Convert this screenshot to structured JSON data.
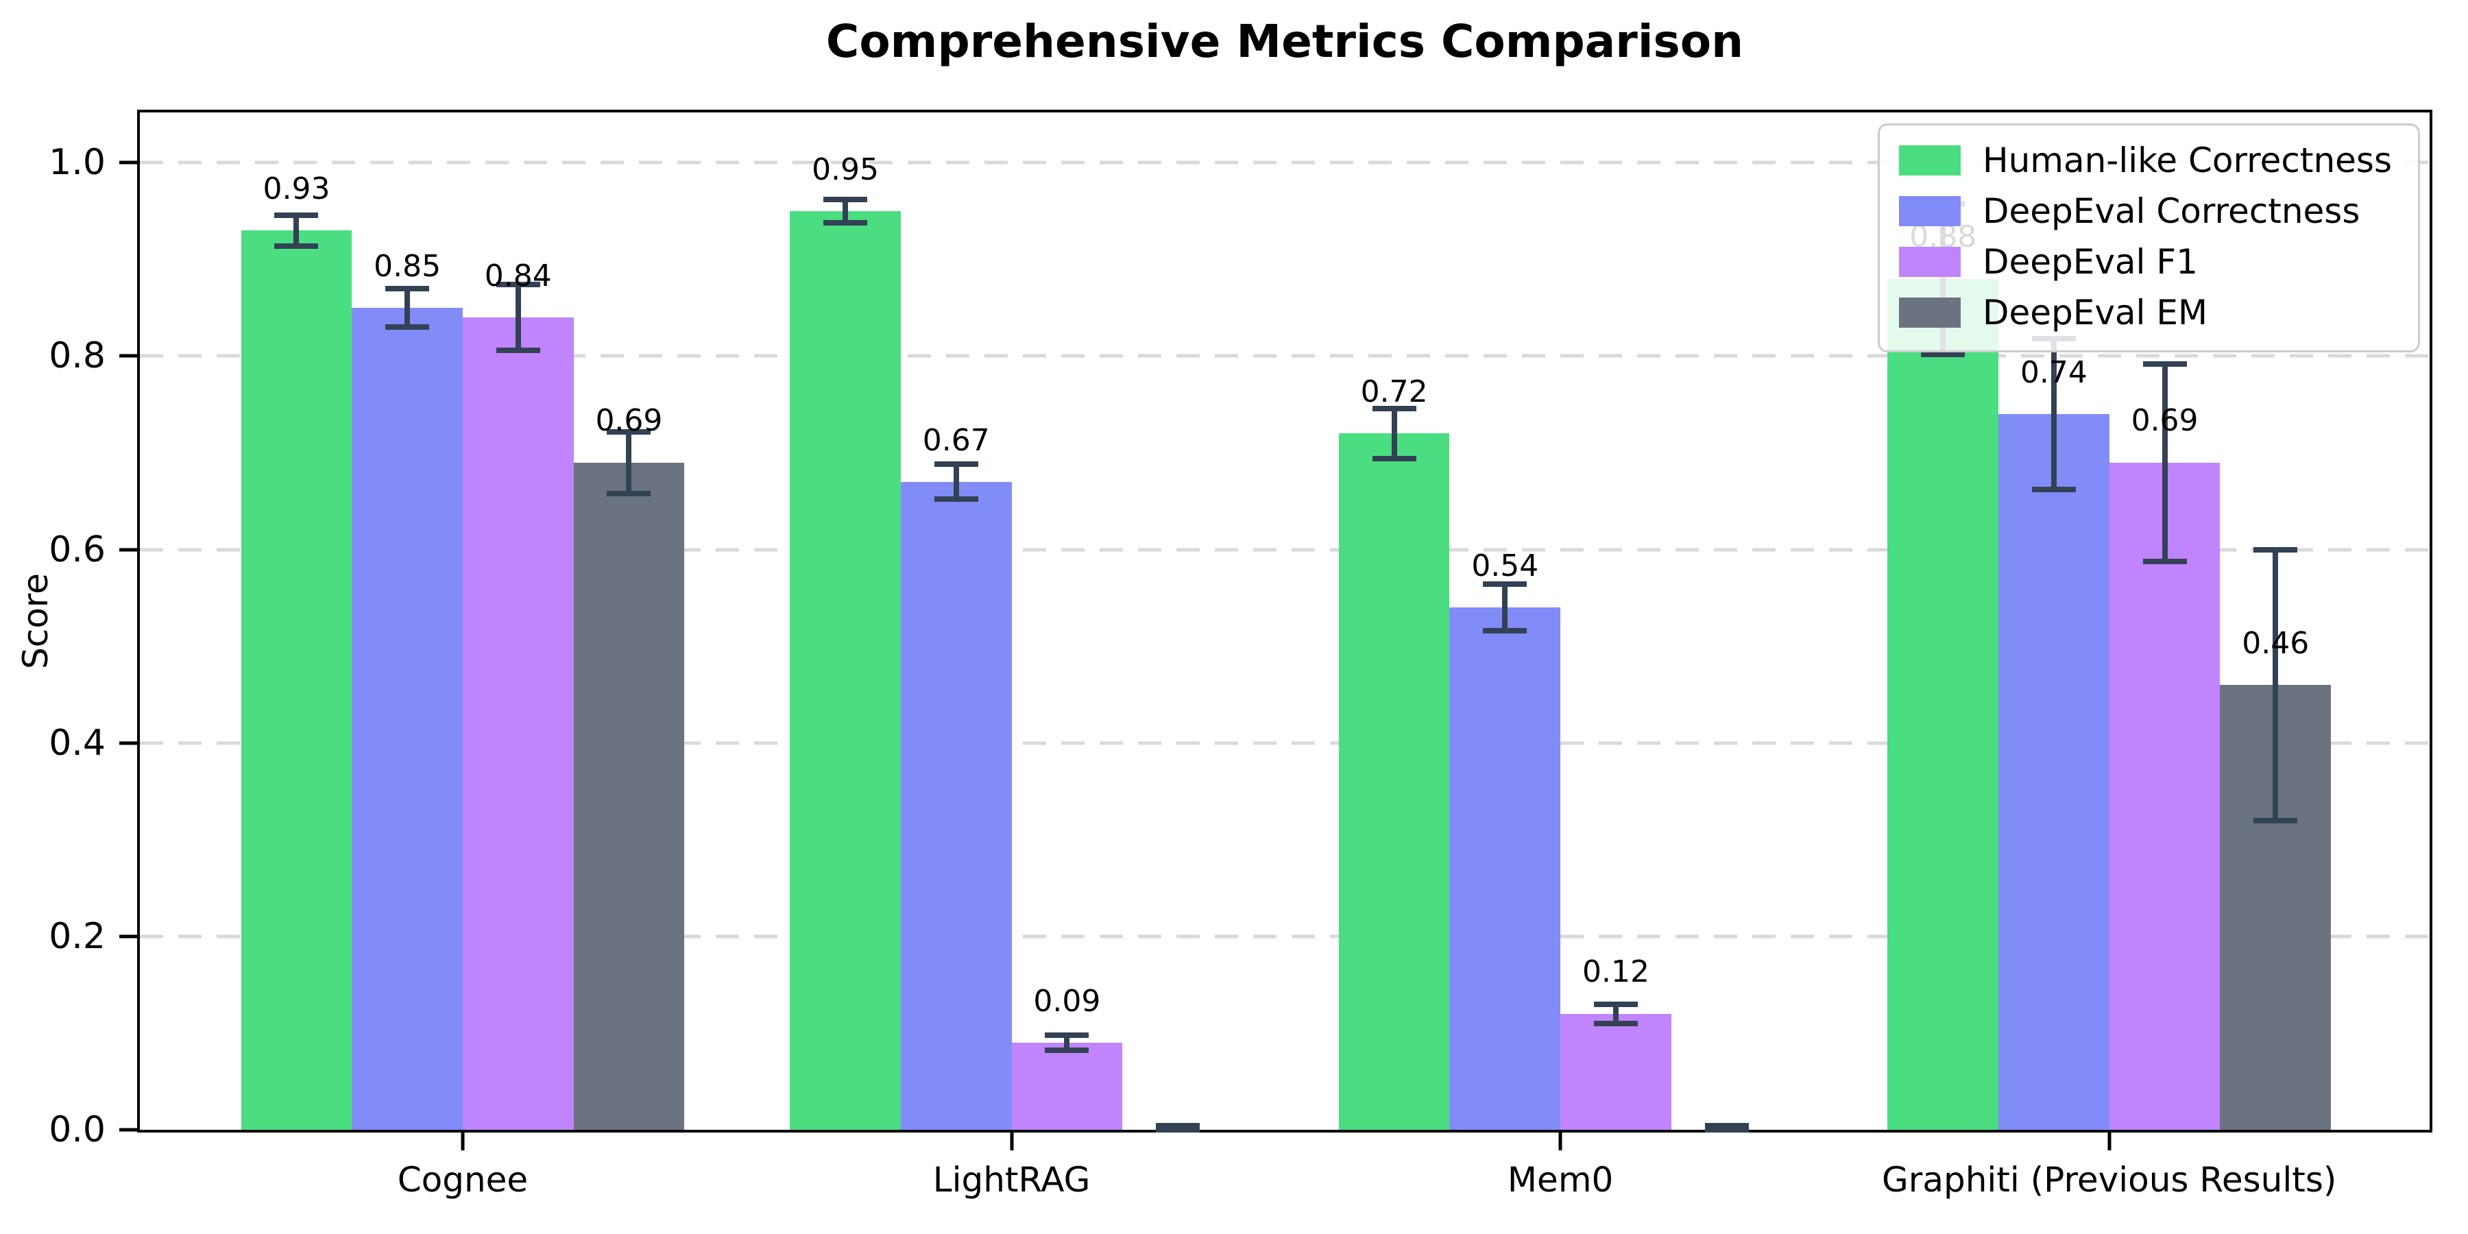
{
  "chart_data": {
    "type": "bar",
    "title": "Comprehensive Metrics Comparison",
    "xlabel": "",
    "ylabel": "Score",
    "categories": [
      "Cognee",
      "LightRAG",
      "Mem0",
      "Graphiti (Previous Results)"
    ],
    "series": [
      {
        "name": "Human-like Correctness",
        "color": "#4ade80",
        "values": [
          0.93,
          0.95,
          0.72,
          0.88
        ],
        "errors": [
          0.016,
          0.012,
          0.026,
          0.078
        ]
      },
      {
        "name": "DeepEval Correctness",
        "color": "#818cf8",
        "values": [
          0.85,
          0.67,
          0.54,
          0.74
        ],
        "errors": [
          0.02,
          0.018,
          0.024,
          0.078
        ]
      },
      {
        "name": "DeepEval F1",
        "color": "#c084fc",
        "values": [
          0.84,
          0.09,
          0.12,
          0.69
        ],
        "errors": [
          0.034,
          0.008,
          0.01,
          0.102
        ]
      },
      {
        "name": "DeepEval EM",
        "color": "#6b7280",
        "values": [
          0.69,
          0.0,
          0.0,
          0.46
        ],
        "errors": [
          0.032,
          0.004,
          0.004,
          0.14
        ]
      }
    ],
    "value_label_format": "0.00",
    "yticks": [
      0.0,
      0.2,
      0.4,
      0.6,
      0.8,
      1.0
    ],
    "ytick_labels": [
      "0.0",
      "0.2",
      "0.4",
      "0.6",
      "0.8",
      "1.0"
    ],
    "ylim": [
      0,
      1.052
    ],
    "grid": "horizontal-dashed",
    "legend_position": "upper right",
    "colors": {
      "error_bar": "#334155",
      "grid": "#d9d9d9",
      "axis": "#000000",
      "background": "#ffffff",
      "legend_border": "#cccccc"
    }
  }
}
